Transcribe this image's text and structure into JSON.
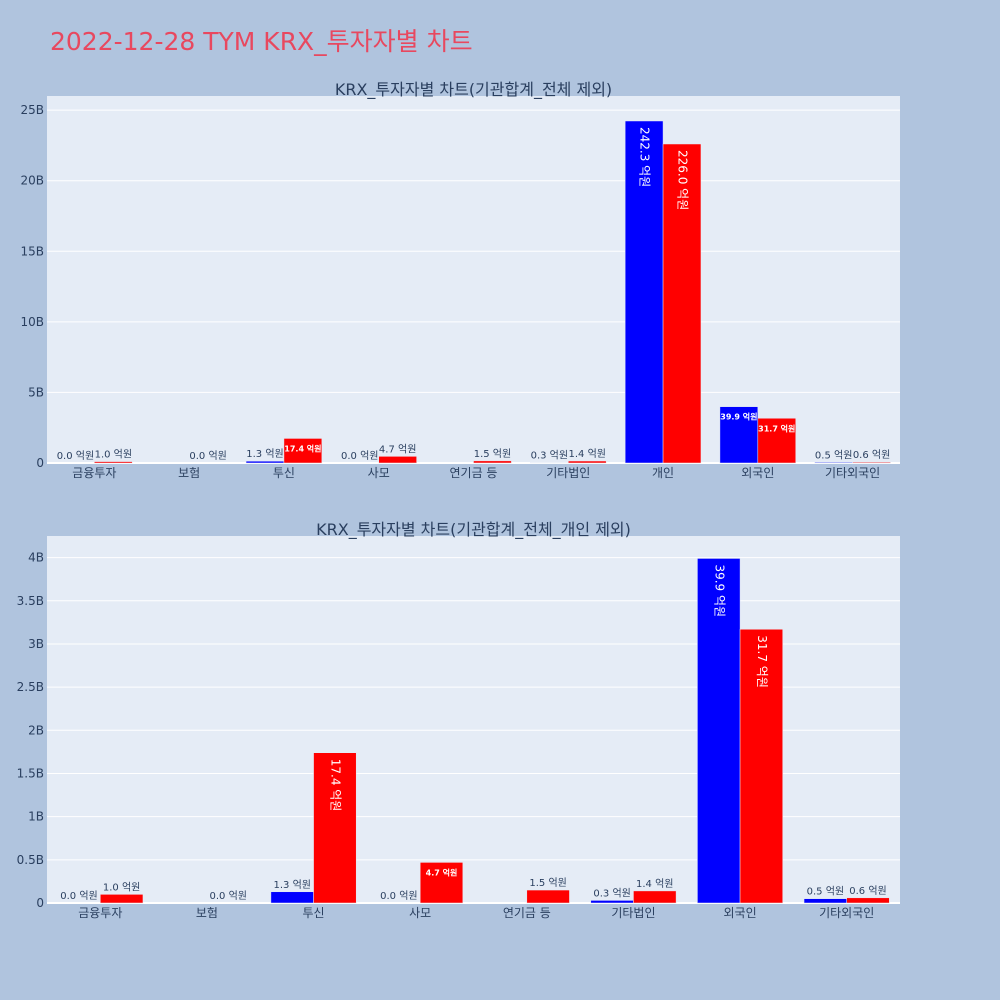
{
  "title": "2022-12-28 TYM KRX_투자자별 차트",
  "colors": {
    "buy": "#0000ff",
    "sell": "#ff0000",
    "plot_bg": "#e5ecf6",
    "page_bg": "#b0c4de",
    "title": "#e8485f"
  },
  "chart_data": [
    {
      "type": "bar",
      "title": "KRX_투자자별 차트(기관합계_전체 제외)",
      "categories": [
        "금융투자",
        "보험",
        "투신",
        "사모",
        "연기금 등",
        "기타법인",
        "개인",
        "외국인",
        "기타외국인"
      ],
      "series": [
        {
          "values": [
            0.0,
            0.0,
            0.13,
            0.0,
            0.0,
            0.03,
            24.23,
            3.99,
            0.05
          ],
          "labels": [
            "0.0 억원",
            "",
            "1.3 억원",
            "0.0 억원",
            "",
            "0.3 억원",
            "242.3 억원",
            "39.9 억원",
            "0.5 억원"
          ]
        },
        {
          "values": [
            0.1,
            0.0,
            1.74,
            0.47,
            0.15,
            0.14,
            22.6,
            3.17,
            0.06
          ],
          "labels": [
            "1.0 억원",
            "0.0 억원",
            "17.4 억원",
            "4.7 억원",
            "1.5 억원",
            "1.4 억원",
            "226.0 억원",
            "31.7 억원",
            "0.6 억원"
          ]
        }
      ],
      "y_unit": "B",
      "ylim": [
        0,
        26
      ],
      "yticks": [
        0,
        5,
        10,
        15,
        20,
        25
      ],
      "ytick_labels": [
        "0",
        "5B",
        "10B",
        "15B",
        "20B",
        "25B"
      ],
      "grid": true,
      "legend": "none"
    },
    {
      "type": "bar",
      "title": "KRX_투자자별 차트(기관합계_전체_개인 제외)",
      "categories": [
        "금융투자",
        "보험",
        "투신",
        "사모",
        "연기금 등",
        "기타법인",
        "외국인",
        "기타외국인"
      ],
      "series": [
        {
          "values": [
            0.0,
            0.0,
            0.13,
            0.0,
            0.0,
            0.03,
            3.99,
            0.05
          ],
          "labels": [
            "0.0 억원",
            "",
            "1.3 억원",
            "0.0 억원",
            "",
            "0.3 억원",
            "39.9 억원",
            "0.5 억원"
          ]
        },
        {
          "values": [
            0.1,
            0.0,
            1.74,
            0.47,
            0.15,
            0.14,
            3.17,
            0.06
          ],
          "labels": [
            "1.0 억원",
            "0.0 억원",
            "17.4 억원",
            "4.7 억원",
            "1.5 억원",
            "1.4 억원",
            "31.7 억원",
            "0.6 억원"
          ]
        }
      ],
      "y_unit": "B",
      "ylim": [
        0,
        4.25
      ],
      "yticks": [
        0,
        0.5,
        1,
        1.5,
        2,
        2.5,
        3,
        3.5,
        4
      ],
      "ytick_labels": [
        "0",
        "0.5B",
        "1B",
        "1.5B",
        "2B",
        "2.5B",
        "3B",
        "3.5B",
        "4B"
      ],
      "grid": true,
      "legend": "none"
    }
  ]
}
